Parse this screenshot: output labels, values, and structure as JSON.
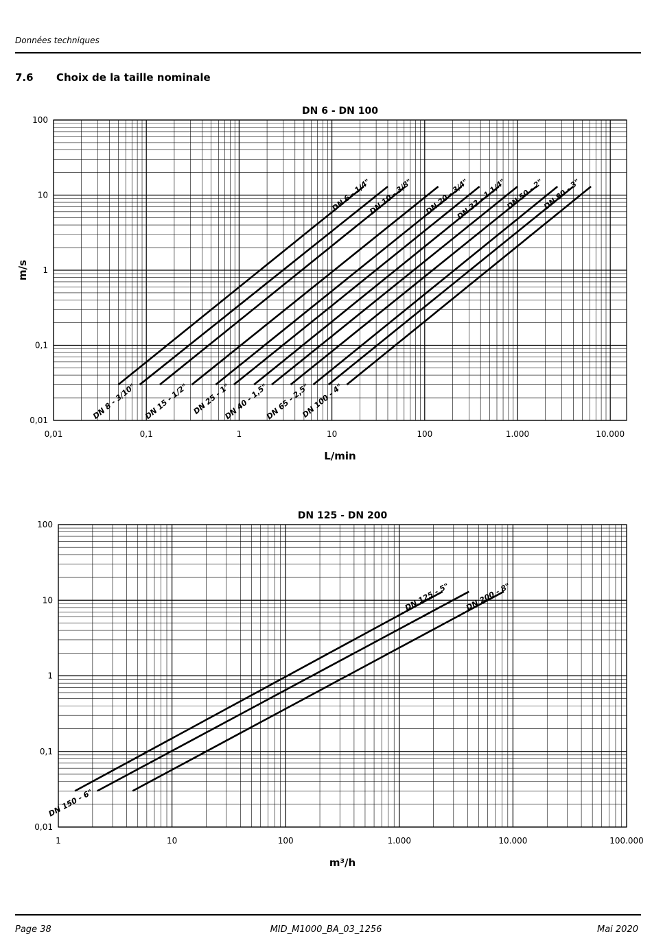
{
  "header": {
    "text": "Données techniques"
  },
  "section": {
    "number": "7.6",
    "title": "Choix de la taille nominale"
  },
  "chart_data": [
    {
      "type": "line",
      "title": "DN 6 - DN 100",
      "xlabel": "L/min",
      "ylabel": "m/s",
      "xscale": "log",
      "yscale": "log",
      "xlim": [
        0.01,
        15000
      ],
      "ylim": [
        0.01,
        100
      ],
      "grid": true,
      "xticks": [
        0.01,
        0.1,
        1,
        10,
        100,
        1000,
        10000
      ],
      "xtick_labels": [
        "0,01",
        "0,1",
        "1",
        "10",
        "100",
        "1.000",
        "10.000"
      ],
      "yticks": [
        0.01,
        0.1,
        1,
        10,
        100
      ],
      "ytick_labels": [
        "0,01",
        "0,1",
        "1",
        "10",
        "100"
      ],
      "series": [
        {
          "name": "DN 6 - 1/4\"",
          "label_pos": "top",
          "x": [
            0.05,
            22
          ],
          "y": [
            0.03,
            13
          ]
        },
        {
          "name": "DN 8 - 3/10\"",
          "label_pos": "bottom",
          "x": [
            0.085,
            40
          ],
          "y": [
            0.03,
            13
          ]
        },
        {
          "name": "DN 10 - 3/8\"",
          "label_pos": "top",
          "x": [
            0.14,
            62
          ],
          "y": [
            0.03,
            13
          ]
        },
        {
          "name": "DN 15 - 1/2\"",
          "label_pos": "bottom",
          "x": [
            0.31,
            140
          ],
          "y": [
            0.03,
            13
          ]
        },
        {
          "name": "DN 20 - 3/4\"",
          "label_pos": "top",
          "x": [
            0.56,
            250
          ],
          "y": [
            0.03,
            13
          ]
        },
        {
          "name": "DN 25 - 1\"",
          "label_pos": "bottom",
          "x": [
            0.88,
            390
          ],
          "y": [
            0.03,
            13
          ]
        },
        {
          "name": "DN 32 - 1 1/4\"",
          "label_pos": "top",
          "x": [
            1.45,
            630
          ],
          "y": [
            0.03,
            13
          ]
        },
        {
          "name": "DN 40 - 1,5\"",
          "label_pos": "bottom",
          "x": [
            2.25,
            1000
          ],
          "y": [
            0.03,
            13
          ]
        },
        {
          "name": "DN 50 - 2\"",
          "label_pos": "top",
          "x": [
            3.6,
            1600
          ],
          "y": [
            0.03,
            13
          ]
        },
        {
          "name": "DN 65 - 2,5\"",
          "label_pos": "bottom",
          "x": [
            6.3,
            2700
          ],
          "y": [
            0.03,
            13
          ]
        },
        {
          "name": "DN 80 - 3\"",
          "label_pos": "top",
          "x": [
            9.2,
            4000
          ],
          "y": [
            0.03,
            13
          ]
        },
        {
          "name": "DN 100 - 4\"",
          "label_pos": "bottom",
          "x": [
            14.5,
            6200
          ],
          "y": [
            0.03,
            13
          ]
        }
      ]
    },
    {
      "type": "line",
      "title": "DN 125 - DN 200",
      "xlabel": "m³/h",
      "ylabel": "",
      "xscale": "log",
      "yscale": "log",
      "xlim": [
        1,
        100000
      ],
      "ylim": [
        0.01,
        100
      ],
      "grid": true,
      "xticks": [
        1,
        10,
        100,
        1000,
        10000,
        100000
      ],
      "xtick_labels": [
        "1",
        "10",
        "100",
        "1.000",
        "10.000",
        "100.000"
      ],
      "yticks": [
        0.01,
        0.1,
        1,
        10,
        100
      ],
      "ytick_labels": [
        "0,01",
        "0,1",
        "1",
        "10",
        "100"
      ],
      "series": [
        {
          "name": "DN 125 - 5\"",
          "label_pos": "top",
          "x": [
            1.4,
            2400
          ],
          "y": [
            0.03,
            13
          ]
        },
        {
          "name": "DN 150 - 6\"",
          "label_pos": "bottom",
          "x": [
            2.2,
            4100
          ],
          "y": [
            0.03,
            13
          ]
        },
        {
          "name": "DN 200 - 8\"",
          "label_pos": "top",
          "x": [
            4.5,
            8300
          ],
          "y": [
            0.03,
            13
          ]
        }
      ]
    }
  ],
  "footer": {
    "page": "Page 38",
    "doc": "MID_M1000_BA_03_1256",
    "date": "Mai 2020"
  }
}
